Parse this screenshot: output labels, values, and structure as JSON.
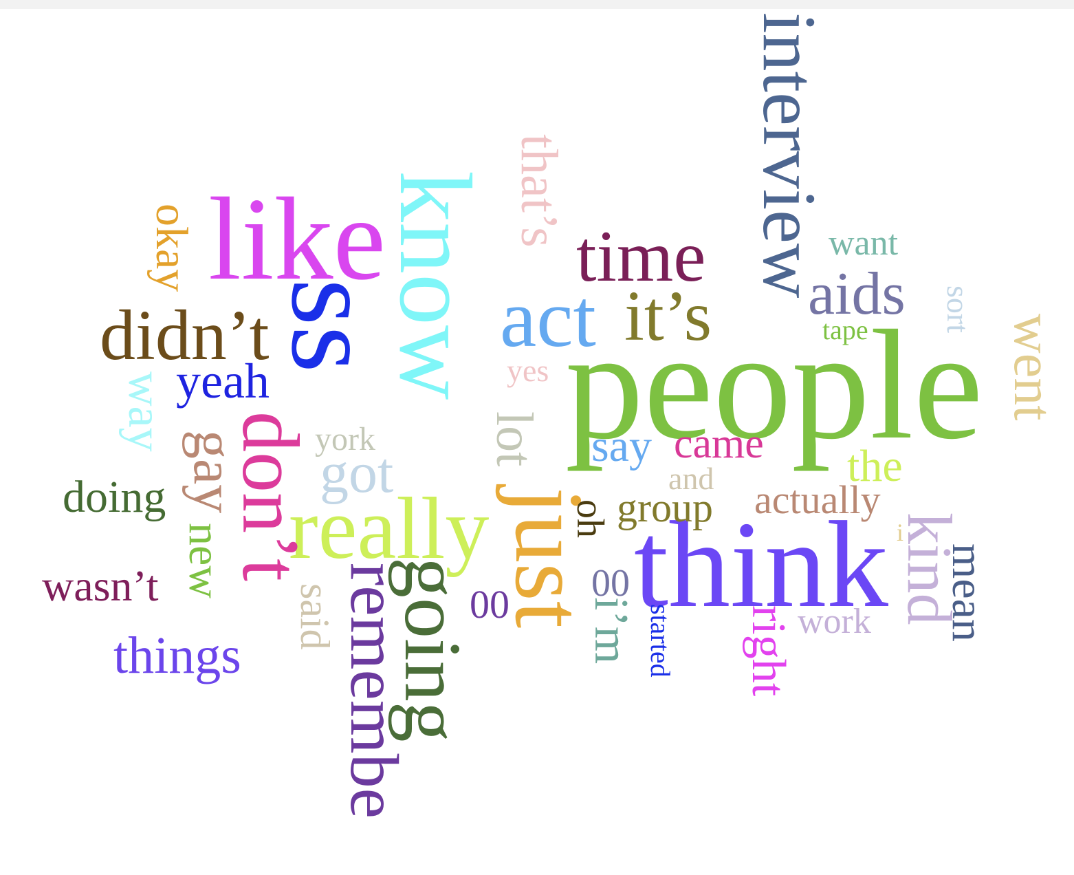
{
  "words": [
    {
      "text": "people",
      "color": "#7dc142",
      "orientation": "horizontal"
    },
    {
      "text": "think",
      "color": "#6b47f5",
      "orientation": "horizontal"
    },
    {
      "text": "like",
      "color": "#d946ef",
      "orientation": "horizontal"
    },
    {
      "text": "know",
      "color": "#7ff6f8",
      "orientation": "vertical"
    },
    {
      "text": "ss",
      "color": "#1a2fe8",
      "orientation": "vertical"
    },
    {
      "text": "interview",
      "color": "#4d6690",
      "orientation": "vertical"
    },
    {
      "text": "really",
      "color": "#cdef59",
      "orientation": "horizontal"
    },
    {
      "text": "just",
      "color": "#e8aa38",
      "orientation": "vertical"
    },
    {
      "text": "act",
      "color": "#65a9f0",
      "orientation": "horizontal"
    },
    {
      "text": "time",
      "color": "#7a1f57",
      "orientation": "horizontal"
    },
    {
      "text": "don’t",
      "color": "#dc3b9b",
      "orientation": "vertical"
    },
    {
      "text": "going",
      "color": "#4a6d38",
      "orientation": "vertical"
    },
    {
      "text": "remembe",
      "color": "#6b3a9e",
      "orientation": "vertical"
    },
    {
      "text": "didn’t",
      "color": "#6b4c1a",
      "orientation": "horizontal"
    },
    {
      "text": "it’s",
      "color": "#817a2c",
      "orientation": "horizontal"
    },
    {
      "text": "aids",
      "color": "#7474a4",
      "orientation": "horizontal"
    },
    {
      "text": "that’s",
      "color": "#f0c4c6",
      "orientation": "vertical"
    },
    {
      "text": "kind",
      "color": "#c4b0d8",
      "orientation": "vertical"
    },
    {
      "text": "yeah",
      "color": "#1e23e0",
      "orientation": "horizontal"
    },
    {
      "text": "things",
      "color": "#6b45eb",
      "orientation": "horizontal"
    },
    {
      "text": "got",
      "color": "#c2d6e6",
      "orientation": "horizontal"
    },
    {
      "text": "gay",
      "color": "#b98873",
      "orientation": "vertical"
    },
    {
      "text": "went",
      "color": "#e2cd8f",
      "orientation": "vertical"
    },
    {
      "text": "okay",
      "color": "#e3a12b",
      "orientation": "vertical"
    },
    {
      "text": "mean",
      "color": "#4a5e88",
      "orientation": "vertical"
    },
    {
      "text": "doing",
      "color": "#456b33",
      "orientation": "horizontal"
    },
    {
      "text": "wasn’t",
      "color": "#7e1e5a",
      "orientation": "horizontal"
    },
    {
      "text": "came",
      "color": "#d83897",
      "orientation": "horizontal"
    },
    {
      "text": "i’m",
      "color": "#6ea89a",
      "orientation": "vertical"
    },
    {
      "text": "lot",
      "color": "#c3c7b6",
      "orientation": "vertical"
    },
    {
      "text": "new",
      "color": "#7dc142",
      "orientation": "vertical"
    },
    {
      "text": "group",
      "color": "#817a2c",
      "orientation": "horizontal"
    },
    {
      "text": "actually",
      "color": "#b98873",
      "orientation": "horizontal"
    },
    {
      "text": "say",
      "color": "#65a9f0",
      "orientation": "horizontal"
    },
    {
      "text": "the",
      "color": "#cdef59",
      "orientation": "horizontal"
    },
    {
      "text": "way",
      "color": "#a8f7f9",
      "orientation": "vertical"
    },
    {
      "text": "said",
      "color": "#cfc5ad",
      "orientation": "vertical"
    },
    {
      "text": "right",
      "color": "#e242ee",
      "orientation": "vertical"
    },
    {
      "text": "want",
      "color": "#79b8a8",
      "orientation": "horizontal"
    },
    {
      "text": "york",
      "color": "#c3c7b6",
      "orientation": "horizontal"
    },
    {
      "text": "work",
      "color": "#c4b0d8",
      "orientation": "horizontal"
    },
    {
      "text": "and",
      "color": "#cfc5ad",
      "orientation": "horizontal"
    },
    {
      "text": "oh",
      "color": "#4a3c10",
      "orientation": "vertical"
    },
    {
      "text": "00",
      "color": "#6b3a9e",
      "orientation": "horizontal"
    },
    {
      "text": "00",
      "color": "#7474a4",
      "orientation": "horizontal"
    },
    {
      "text": "yes",
      "color": "#f0c4c6",
      "orientation": "horizontal"
    },
    {
      "text": "sort",
      "color": "#c2d6e6",
      "orientation": "vertical"
    },
    {
      "text": "tape",
      "color": "#7dc142",
      "orientation": "horizontal"
    },
    {
      "text": "started",
      "color": "#1a2fe8",
      "orientation": "vertical"
    },
    {
      "text": "i",
      "color": "#e2cd8f",
      "orientation": "horizontal"
    }
  ]
}
